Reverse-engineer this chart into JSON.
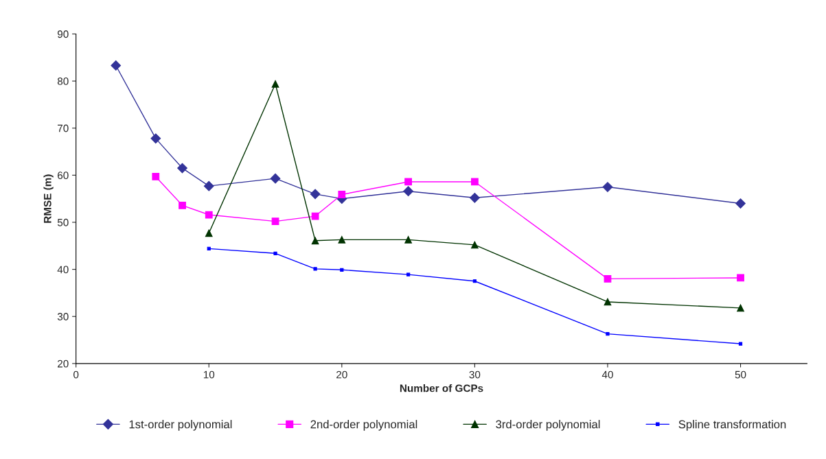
{
  "chart_data": {
    "type": "line",
    "xlabel": "Number of GCPs",
    "ylabel": "RMSE (m)",
    "xlim": [
      0,
      55
    ],
    "xticks": [
      0,
      10,
      20,
      30,
      40,
      50
    ],
    "ylim": [
      20,
      90
    ],
    "yticks": [
      20,
      30,
      40,
      50,
      60,
      70,
      80,
      90
    ],
    "grid": false,
    "legend": "bottom",
    "series": [
      {
        "name": "1st-order polynomial",
        "color": "#333399",
        "marker": "diamond",
        "x": [
          3,
          6,
          8,
          10,
          15,
          18,
          20,
          25,
          30,
          40,
          50
        ],
        "values": [
          83.3,
          67.8,
          61.5,
          57.7,
          59.3,
          56.0,
          55.0,
          56.6,
          55.2,
          57.5,
          54.0
        ]
      },
      {
        "name": "2nd-order polynomial",
        "color": "#ff00ff",
        "marker": "square",
        "x": [
          6,
          8,
          10,
          15,
          18,
          20,
          25,
          30,
          40,
          50
        ],
        "values": [
          59.7,
          53.6,
          51.6,
          50.2,
          51.3,
          55.9,
          58.6,
          58.6,
          38.0,
          38.2
        ]
      },
      {
        "name": "3rd-order polynomial",
        "color": "#003300",
        "marker": "triangle",
        "x": [
          10,
          15,
          18,
          20,
          25,
          30,
          40,
          50
        ],
        "values": [
          47.7,
          79.4,
          46.1,
          46.3,
          46.3,
          45.2,
          33.1,
          31.8
        ]
      },
      {
        "name": "Spline transformation",
        "color": "#0000ff",
        "marker": "square",
        "x": [
          10,
          15,
          18,
          20,
          25,
          30,
          40,
          50
        ],
        "values": [
          44.4,
          43.4,
          40.1,
          39.9,
          38.9,
          37.5,
          26.3,
          24.2
        ]
      }
    ]
  }
}
